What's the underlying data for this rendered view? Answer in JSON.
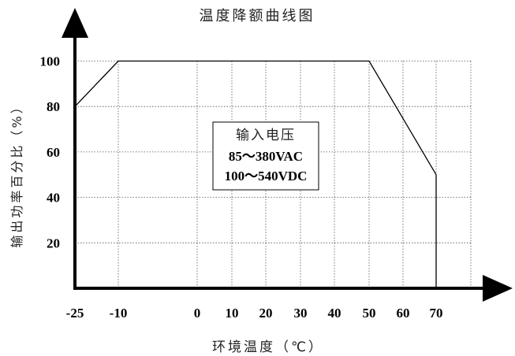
{
  "chart_data": {
    "type": "line",
    "title": "温度降额曲线图",
    "xlabel": "环境温度（℃）",
    "ylabel": "输出功率百分比（%）",
    "x_ticks": [
      "-25",
      "-10",
      "0",
      "10",
      "20",
      "30",
      "40",
      "50",
      "60",
      "70"
    ],
    "y_ticks": [
      "100",
      "80",
      "60",
      "40",
      "20"
    ],
    "series": [
      {
        "x": [
          -25,
          -10,
          50,
          70,
          70
        ],
        "y": [
          80,
          100,
          100,
          50,
          0
        ]
      }
    ],
    "grid": true,
    "grid_style": "dotted",
    "annotation": {
      "title": "输入电压",
      "lines": [
        "85～380VAC",
        "100～540VDC"
      ]
    }
  }
}
